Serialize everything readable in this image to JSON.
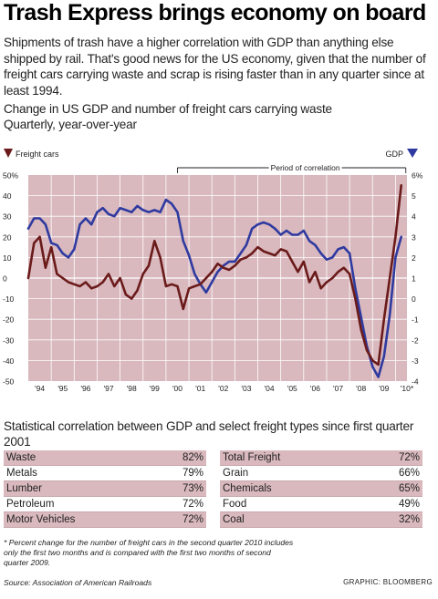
{
  "headline": "Trash Express brings economy on board",
  "deck": "Shipments of trash have a higher correlation with GDP than anything else shipped by rail. That's good news for the US economy, given that the number of freight cars carrying waste and scrap is rising faster than in any quarter since at least 1994.",
  "chart_title": "Change in US GDP and number of freight cars carrying waste",
  "chart_subtitle": "Quarterly, year-over-year",
  "colors": {
    "freight_line": "#6b1a1a",
    "gdp_line": "#2f3aa0",
    "plot_bg": "#d9b9be",
    "grid": "#ffffff",
    "row_shade": "#d9b9be"
  },
  "chart_data": {
    "type": "line",
    "annotation": "Period of correlation",
    "x_tick_labels": [
      "'94",
      "'95",
      "'96",
      "'97",
      "'98",
      "'99",
      "'00",
      "'01",
      "'02",
      "'03",
      "'04",
      "'05",
      "'06",
      "'07",
      "'08",
      "'09",
      "'10*"
    ],
    "xlim": [
      1994,
      2010.5
    ],
    "left_axis": {
      "ylim": [
        -50,
        50
      ],
      "ticks": [
        "50%",
        "40",
        "30",
        "20",
        "10",
        "0",
        "-10",
        "-20",
        "-30",
        "-40",
        "-50"
      ]
    },
    "right_axis": {
      "ylim": [
        -4,
        6
      ],
      "ticks": [
        "6%",
        "5",
        "4",
        "3",
        "2",
        "1",
        "0",
        "-1",
        "-2",
        "-3",
        "-4"
      ]
    },
    "series": [
      {
        "name": "Freight cars",
        "axis": "left",
        "x": [
          1994.0,
          1994.25,
          1994.5,
          1994.75,
          1995.0,
          1995.25,
          1995.5,
          1995.75,
          1996.0,
          1996.25,
          1996.5,
          1996.75,
          1997.0,
          1997.25,
          1997.5,
          1997.75,
          1998.0,
          1998.25,
          1998.5,
          1998.75,
          1999.0,
          1999.25,
          1999.5,
          1999.75,
          2000.0,
          2000.25,
          2000.5,
          2000.75,
          2001.0,
          2001.25,
          2001.5,
          2001.75,
          2002.0,
          2002.25,
          2002.5,
          2002.75,
          2003.0,
          2003.25,
          2003.5,
          2003.75,
          2004.0,
          2004.25,
          2004.5,
          2004.75,
          2005.0,
          2005.25,
          2005.5,
          2005.75,
          2006.0,
          2006.25,
          2006.5,
          2006.75,
          2007.0,
          2007.25,
          2007.5,
          2007.75,
          2008.0,
          2008.25,
          2008.5,
          2008.75,
          2009.0,
          2009.25,
          2009.5,
          2009.75,
          2010.0,
          2010.25
        ],
        "values": [
          0,
          17,
          20,
          5,
          15,
          2,
          0,
          -2,
          -3,
          -4,
          -2,
          -5,
          -4,
          -2,
          2,
          -4,
          0,
          -8,
          -10,
          -6,
          2,
          6,
          18,
          10,
          -4,
          -3,
          -4,
          -15,
          -5,
          -4,
          -3,
          0,
          3,
          7,
          5,
          4,
          6,
          9,
          10,
          12,
          15,
          13,
          12,
          11,
          14,
          13,
          8,
          3,
          8,
          -2,
          3,
          -5,
          -2,
          0,
          3,
          5,
          2,
          -10,
          -25,
          -35,
          -40,
          -42,
          -20,
          0,
          20,
          45
        ]
      },
      {
        "name": "GDP",
        "axis": "right",
        "x": [
          1994.0,
          1994.25,
          1994.5,
          1994.75,
          1995.0,
          1995.25,
          1995.5,
          1995.75,
          1996.0,
          1996.25,
          1996.5,
          1996.75,
          1997.0,
          1997.25,
          1997.5,
          1997.75,
          1998.0,
          1998.25,
          1998.5,
          1998.75,
          1999.0,
          1999.25,
          1999.5,
          1999.75,
          2000.0,
          2000.25,
          2000.5,
          2000.75,
          2001.0,
          2001.25,
          2001.5,
          2001.75,
          2002.0,
          2002.25,
          2002.5,
          2002.75,
          2003.0,
          2003.25,
          2003.5,
          2003.75,
          2004.0,
          2004.25,
          2004.5,
          2004.75,
          2005.0,
          2005.25,
          2005.5,
          2005.75,
          2006.0,
          2006.25,
          2006.5,
          2006.75,
          2007.0,
          2007.25,
          2007.5,
          2007.75,
          2008.0,
          2008.25,
          2008.5,
          2008.75,
          2009.0,
          2009.25,
          2009.5,
          2009.75,
          2010.0,
          2010.25
        ],
        "values": [
          3.4,
          3.9,
          3.9,
          3.6,
          2.7,
          2.6,
          2.2,
          2.0,
          2.4,
          3.6,
          3.9,
          3.6,
          4.2,
          4.4,
          4.1,
          4.0,
          4.4,
          4.3,
          4.2,
          4.5,
          4.3,
          4.2,
          4.3,
          4.2,
          4.8,
          4.6,
          4.2,
          2.8,
          2.1,
          1.2,
          0.7,
          0.3,
          0.8,
          1.3,
          1.6,
          1.8,
          1.8,
          2.2,
          2.6,
          3.4,
          3.6,
          3.7,
          3.6,
          3.4,
          3.1,
          3.3,
          3.1,
          3.1,
          3.3,
          2.8,
          2.6,
          2.2,
          1.9,
          2.0,
          2.4,
          2.5,
          2.2,
          0.5,
          -0.9,
          -2.3,
          -3.3,
          -3.8,
          -2.8,
          -0.8,
          2.0,
          3.0
        ]
      }
    ],
    "legend": [
      "Freight cars",
      "GDP"
    ]
  },
  "correlation_title": "Statistical correlation between GDP and select freight types since first quarter 2001",
  "correlation_left": [
    {
      "label": "Waste",
      "value": "82%"
    },
    {
      "label": "Metals",
      "value": "79%"
    },
    {
      "label": "Lumber",
      "value": "73%"
    },
    {
      "label": "Petroleum",
      "value": "72%"
    },
    {
      "label": "Motor Vehicles",
      "value": "72%"
    }
  ],
  "correlation_right": [
    {
      "label": "Total Freight",
      "value": "72%"
    },
    {
      "label": "Grain",
      "value": "66%"
    },
    {
      "label": "Chemicals",
      "value": "65%"
    },
    {
      "label": "Food",
      "value": "49%"
    },
    {
      "label": "Coal",
      "value": "32%"
    }
  ],
  "footnote": "* Percent change for the number of freight cars in the second quarter 2010 includes only the first two months and is compared with the first two months of second quarter 2009.",
  "source": "Source: Association of American Railroads",
  "credit": "GRAPHIC: BLOOMBERG"
}
